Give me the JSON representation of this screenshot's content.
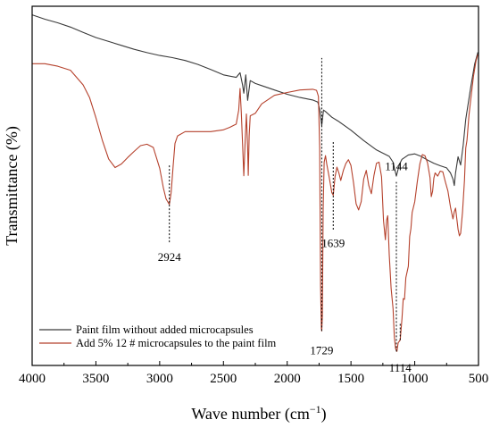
{
  "chart_data": {
    "type": "line",
    "xlabel": "Wave number (cm",
    "xlabel_sup": "−1",
    "xlabel_close": ")",
    "ylabel": "Transmittance (%)",
    "xlim": [
      4000,
      500
    ],
    "x_reversed": true,
    "x_ticks": [
      4000,
      3500,
      3000,
      2500,
      2000,
      1500,
      1000,
      500
    ],
    "y_ticks_shown": false,
    "ylim": [
      0,
      100
    ],
    "grid": false,
    "legend_position": "bottom-left",
    "series": [
      {
        "name": "Paint film without added microcapsules",
        "color": "#3a3a3a",
        "points": [
          [
            4000,
            97.6
          ],
          [
            3900,
            96.4
          ],
          [
            3800,
            95.4
          ],
          [
            3700,
            94.2
          ],
          [
            3600,
            92.7
          ],
          [
            3500,
            91.3
          ],
          [
            3400,
            90.2
          ],
          [
            3300,
            89.1
          ],
          [
            3200,
            88.0
          ],
          [
            3100,
            87.1
          ],
          [
            3000,
            86.3
          ],
          [
            2900,
            85.7
          ],
          [
            2800,
            84.9
          ],
          [
            2700,
            83.8
          ],
          [
            2600,
            82.4
          ],
          [
            2500,
            80.9
          ],
          [
            2400,
            80.2
          ],
          [
            2370,
            81.5
          ],
          [
            2350,
            78.1
          ],
          [
            2340,
            75.8
          ],
          [
            2325,
            80.9
          ],
          [
            2310,
            73.8
          ],
          [
            2290,
            79.3
          ],
          [
            2250,
            78.5
          ],
          [
            2200,
            77.9
          ],
          [
            2100,
            76.7
          ],
          [
            2000,
            75.5
          ],
          [
            1900,
            74.6
          ],
          [
            1800,
            73.9
          ],
          [
            1760,
            73.3
          ],
          [
            1745,
            71.4
          ],
          [
            1729,
            66.8
          ],
          [
            1715,
            71.1
          ],
          [
            1700,
            70.7
          ],
          [
            1650,
            69.1
          ],
          [
            1600,
            68.0
          ],
          [
            1500,
            65.5
          ],
          [
            1400,
            62.6
          ],
          [
            1300,
            60.0
          ],
          [
            1200,
            58.2
          ],
          [
            1170,
            56.6
          ],
          [
            1144,
            52.7
          ],
          [
            1120,
            56.0
          ],
          [
            1100,
            57.4
          ],
          [
            1050,
            58.6
          ],
          [
            1000,
            58.9
          ],
          [
            950,
            58.2
          ],
          [
            900,
            57.2
          ],
          [
            850,
            56.3
          ],
          [
            800,
            55.6
          ],
          [
            750,
            55.0
          ],
          [
            720,
            53.6
          ],
          [
            700,
            51.9
          ],
          [
            690,
            50.1
          ],
          [
            680,
            53.6
          ],
          [
            660,
            58.1
          ],
          [
            640,
            55.8
          ],
          [
            620,
            61.4
          ],
          [
            600,
            68.5
          ],
          [
            560,
            77.6
          ],
          [
            530,
            83.9
          ],
          [
            505,
            87.2
          ]
        ]
      },
      {
        "name": "Add 5% 12 # microcapsules to the paint film",
        "color": "#b5412c",
        "points": [
          [
            4000,
            84.0
          ],
          [
            3900,
            84.0
          ],
          [
            3800,
            83.3
          ],
          [
            3700,
            82.2
          ],
          [
            3600,
            78.1
          ],
          [
            3550,
            74.6
          ],
          [
            3500,
            69.0
          ],
          [
            3450,
            62.7
          ],
          [
            3400,
            57.5
          ],
          [
            3350,
            55.1
          ],
          [
            3300,
            56.1
          ],
          [
            3250,
            57.9
          ],
          [
            3200,
            59.6
          ],
          [
            3150,
            61.2
          ],
          [
            3100,
            61.6
          ],
          [
            3050,
            60.7
          ],
          [
            3000,
            54.9
          ],
          [
            2970,
            49.3
          ],
          [
            2950,
            46.4
          ],
          [
            2935,
            45.5
          ],
          [
            2924,
            44.8
          ],
          [
            2910,
            48.1
          ],
          [
            2895,
            55.4
          ],
          [
            2880,
            61.8
          ],
          [
            2860,
            63.9
          ],
          [
            2800,
            65.1
          ],
          [
            2700,
            65.1
          ],
          [
            2600,
            65.1
          ],
          [
            2500,
            65.6
          ],
          [
            2450,
            66.3
          ],
          [
            2400,
            67.2
          ],
          [
            2380,
            71.1
          ],
          [
            2370,
            77.1
          ],
          [
            2360,
            70.4
          ],
          [
            2350,
            61.8
          ],
          [
            2340,
            52.8
          ],
          [
            2330,
            62.4
          ],
          [
            2320,
            70.0
          ],
          [
            2310,
            60.5
          ],
          [
            2305,
            52.9
          ],
          [
            2298,
            63.9
          ],
          [
            2290,
            69.5
          ],
          [
            2250,
            70.2
          ],
          [
            2200,
            72.8
          ],
          [
            2100,
            75.2
          ],
          [
            2000,
            76.0
          ],
          [
            1900,
            76.7
          ],
          [
            1800,
            76.9
          ],
          [
            1770,
            76.6
          ],
          [
            1755,
            74.9
          ],
          [
            1745,
            60.5
          ],
          [
            1738,
            22.1
          ],
          [
            1732,
            10.4
          ],
          [
            1729,
            9.6
          ],
          [
            1724,
            13.9
          ],
          [
            1718,
            43.4
          ],
          [
            1710,
            56.6
          ],
          [
            1700,
            58.4
          ],
          [
            1690,
            56.1
          ],
          [
            1670,
            52.2
          ],
          [
            1650,
            48.1
          ],
          [
            1639,
            47.4
          ],
          [
            1625,
            52.5
          ],
          [
            1610,
            55.2
          ],
          [
            1595,
            53.6
          ],
          [
            1580,
            51.5
          ],
          [
            1560,
            54.3
          ],
          [
            1540,
            56.2
          ],
          [
            1520,
            57.3
          ],
          [
            1500,
            55.7
          ],
          [
            1480,
            50.9
          ],
          [
            1460,
            45.0
          ],
          [
            1440,
            43.3
          ],
          [
            1420,
            45.6
          ],
          [
            1400,
            51.9
          ],
          [
            1380,
            54.3
          ],
          [
            1360,
            50.1
          ],
          [
            1340,
            47.8
          ],
          [
            1320,
            52.9
          ],
          [
            1300,
            56.3
          ],
          [
            1280,
            56.6
          ],
          [
            1260,
            52.5
          ],
          [
            1245,
            40.3
          ],
          [
            1230,
            35.0
          ],
          [
            1220,
            40.5
          ],
          [
            1212,
            41.7
          ],
          [
            1200,
            30.9
          ],
          [
            1185,
            21.5
          ],
          [
            1170,
            15.8
          ],
          [
            1160,
            8.0
          ],
          [
            1150,
            4.7
          ],
          [
            1140,
            3.9
          ],
          [
            1130,
            6.3
          ],
          [
            1114,
            7.1
          ],
          [
            1100,
            13.1
          ],
          [
            1090,
            18.6
          ],
          [
            1080,
            18.4
          ],
          [
            1070,
            24.4
          ],
          [
            1050,
            27.6
          ],
          [
            1040,
            35.9
          ],
          [
            1030,
            38.1
          ],
          [
            1020,
            42.6
          ],
          [
            1000,
            45.6
          ],
          [
            980,
            51.1
          ],
          [
            960,
            56.1
          ],
          [
            940,
            58.7
          ],
          [
            920,
            58.4
          ],
          [
            900,
            56.4
          ],
          [
            880,
            52.3
          ],
          [
            870,
            47.0
          ],
          [
            860,
            48.5
          ],
          [
            850,
            52.2
          ],
          [
            840,
            53.6
          ],
          [
            820,
            52.7
          ],
          [
            800,
            54.1
          ],
          [
            780,
            53.9
          ],
          [
            760,
            51.1
          ],
          [
            740,
            48.6
          ],
          [
            720,
            44.1
          ],
          [
            700,
            40.8
          ],
          [
            690,
            42.8
          ],
          [
            680,
            43.8
          ],
          [
            660,
            37.9
          ],
          [
            650,
            36.1
          ],
          [
            640,
            36.8
          ],
          [
            625,
            42.7
          ],
          [
            610,
            51.6
          ],
          [
            600,
            60.5
          ],
          [
            590,
            62.7
          ],
          [
            575,
            69.6
          ],
          [
            560,
            74.2
          ],
          [
            540,
            80.4
          ],
          [
            520,
            84.7
          ],
          [
            505,
            86.6
          ]
        ]
      }
    ],
    "annotations": [
      {
        "label": "2924",
        "x": 2924,
        "line_from": 34.3,
        "line_to": 55.8,
        "text_y": 29.1,
        "anchor": "middle",
        "text_x": 2924
      },
      {
        "label": "1729",
        "x": 1729,
        "line_from": 9.6,
        "line_to": 85.6,
        "text_y": 3.1,
        "anchor": "middle",
        "text_x": 1729
      },
      {
        "label": "1639",
        "x": 1639,
        "line_from": 37.8,
        "line_to": 62.2,
        "text_y": 32.9,
        "anchor": "middle",
        "text_x": 1639
      },
      {
        "label": "1144",
        "x": 1144,
        "line_from": 3.9,
        "line_to": 51.1,
        "text_y": 54.3,
        "anchor": "middle",
        "text_x": 1144
      },
      {
        "label": "1114",
        "x": 1114,
        "line_from": 7.1,
        "line_to": 12.0,
        "text_y": -1.8,
        "anchor": "middle",
        "text_x": 1114
      }
    ]
  }
}
